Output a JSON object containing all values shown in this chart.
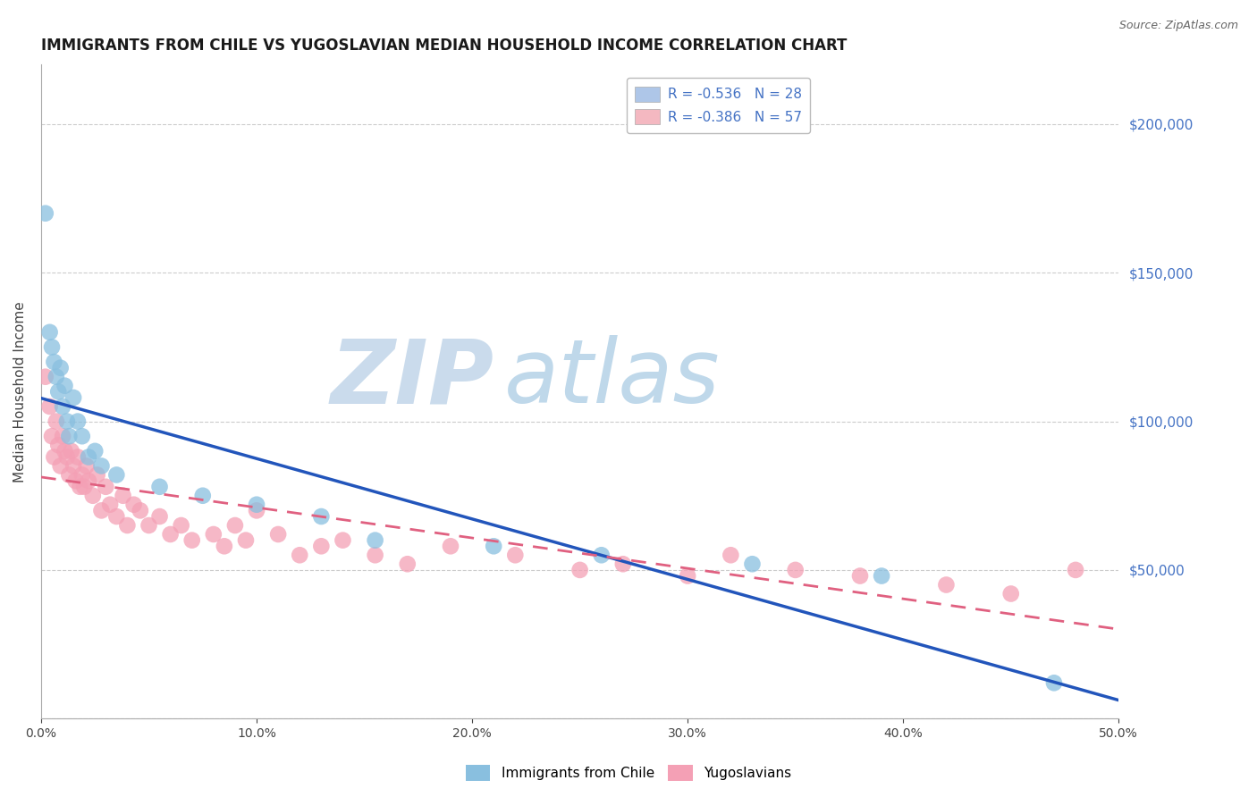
{
  "title": "IMMIGRANTS FROM CHILE VS YUGOSLAVIAN MEDIAN HOUSEHOLD INCOME CORRELATION CHART",
  "source_text": "Source: ZipAtlas.com",
  "ylabel": "Median Household Income",
  "xlim": [
    0.0,
    0.5
  ],
  "ylim": [
    0,
    220000
  ],
  "xtick_values": [
    0.0,
    0.1,
    0.2,
    0.3,
    0.4,
    0.5
  ],
  "ytick_values": [
    0,
    50000,
    100000,
    150000,
    200000
  ],
  "legend_entries": [
    {
      "label": "R = -0.536   N = 28",
      "color": "#aec6e8"
    },
    {
      "label": "R = -0.386   N = 57",
      "color": "#f4b8c1"
    }
  ],
  "legend_bottom_labels": [
    "Immigrants from Chile",
    "Yugoslavians"
  ],
  "watermark_zip": "ZIP",
  "watermark_atlas": "atlas",
  "watermark_zip_color": "#c5d8ea",
  "watermark_atlas_color": "#b8d4e8",
  "title_fontsize": 12,
  "axis_label_fontsize": 11,
  "tick_fontsize": 10,
  "background_color": "#ffffff",
  "grid_color": "#cccccc",
  "chile_color": "#89bfdf",
  "yugo_color": "#f4a0b5",
  "chile_line_color": "#2255bb",
  "yugo_line_color": "#e06080",
  "chile_scatter_x": [
    0.002,
    0.004,
    0.005,
    0.006,
    0.007,
    0.008,
    0.009,
    0.01,
    0.011,
    0.012,
    0.013,
    0.015,
    0.017,
    0.019,
    0.022,
    0.025,
    0.028,
    0.035,
    0.055,
    0.075,
    0.1,
    0.13,
    0.155,
    0.21,
    0.26,
    0.33,
    0.39,
    0.47
  ],
  "chile_scatter_y": [
    170000,
    130000,
    125000,
    120000,
    115000,
    110000,
    118000,
    105000,
    112000,
    100000,
    95000,
    108000,
    100000,
    95000,
    88000,
    90000,
    85000,
    82000,
    78000,
    75000,
    72000,
    68000,
    60000,
    58000,
    55000,
    52000,
    48000,
    12000
  ],
  "yugo_scatter_x": [
    0.002,
    0.004,
    0.005,
    0.006,
    0.007,
    0.008,
    0.009,
    0.01,
    0.011,
    0.012,
    0.013,
    0.014,
    0.015,
    0.016,
    0.017,
    0.018,
    0.019,
    0.02,
    0.021,
    0.022,
    0.024,
    0.026,
    0.028,
    0.03,
    0.032,
    0.035,
    0.038,
    0.04,
    0.043,
    0.046,
    0.05,
    0.055,
    0.06,
    0.065,
    0.07,
    0.08,
    0.085,
    0.09,
    0.095,
    0.1,
    0.11,
    0.12,
    0.13,
    0.14,
    0.155,
    0.17,
    0.19,
    0.22,
    0.25,
    0.27,
    0.3,
    0.32,
    0.35,
    0.38,
    0.42,
    0.45,
    0.48
  ],
  "yugo_scatter_y": [
    115000,
    105000,
    95000,
    88000,
    100000,
    92000,
    85000,
    95000,
    90000,
    88000,
    82000,
    90000,
    85000,
    80000,
    88000,
    78000,
    82000,
    78000,
    85000,
    80000,
    75000,
    82000,
    70000,
    78000,
    72000,
    68000,
    75000,
    65000,
    72000,
    70000,
    65000,
    68000,
    62000,
    65000,
    60000,
    62000,
    58000,
    65000,
    60000,
    70000,
    62000,
    55000,
    58000,
    60000,
    55000,
    52000,
    58000,
    55000,
    50000,
    52000,
    48000,
    55000,
    50000,
    48000,
    45000,
    42000,
    50000
  ]
}
